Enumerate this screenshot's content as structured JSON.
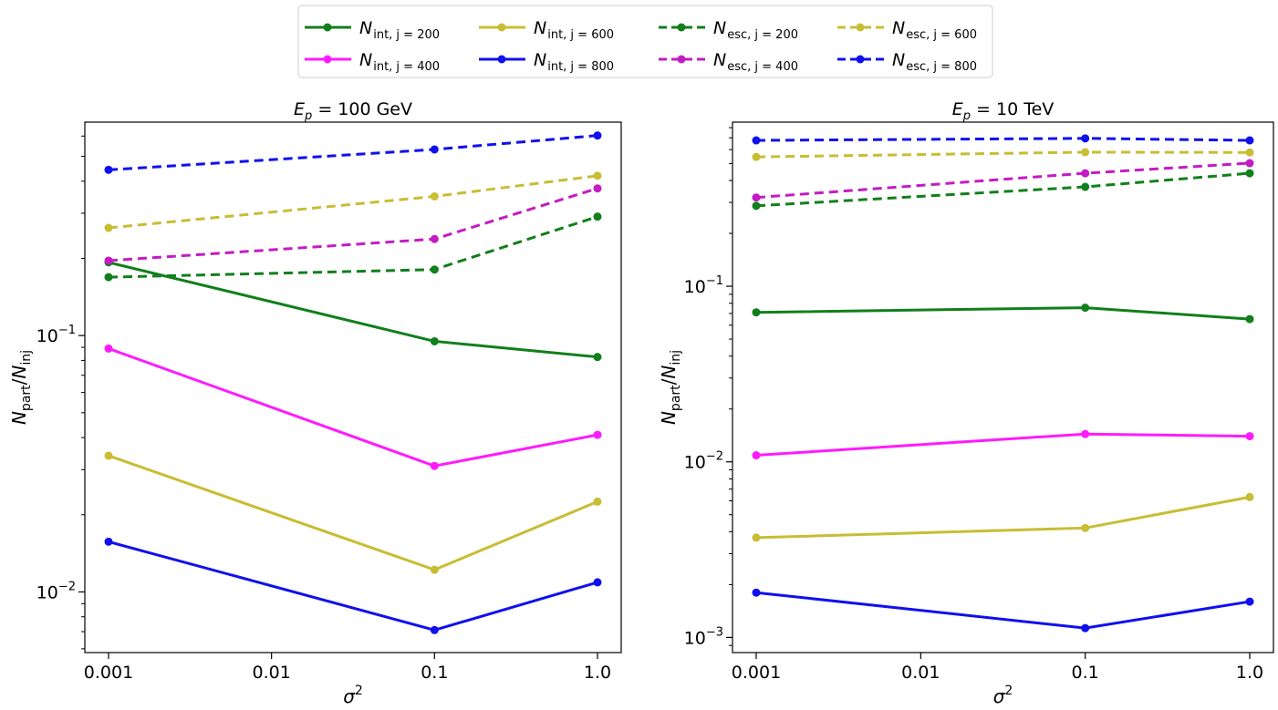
{
  "legend": {
    "location": "top-center",
    "entries": [
      {
        "base": "N",
        "sub": "int, j = 200",
        "color": "#117f1b",
        "dash": false
      },
      {
        "base": "N",
        "sub": "int, j = 400",
        "color": "#ff1aff",
        "dash": false
      },
      {
        "base": "N",
        "sub": "int, j = 600",
        "color": "#c8bd33",
        "dash": false
      },
      {
        "base": "N",
        "sub": "int, j = 800",
        "color": "#1010ee",
        "dash": false
      },
      {
        "base": "N",
        "sub": "esc, j = 200",
        "color": "#117f1b",
        "dash": true
      },
      {
        "base": "N",
        "sub": "esc, j = 400",
        "color": "#c41bc4",
        "dash": true
      },
      {
        "base": "N",
        "sub": "esc, j = 600",
        "color": "#c8bd33",
        "dash": true
      },
      {
        "base": "N",
        "sub": "esc, j = 800",
        "color": "#1010ee",
        "dash": true
      }
    ]
  },
  "chart_data": [
    {
      "type": "line",
      "title": {
        "base": "E",
        "sub": "p",
        "rest": " = 100 GeV"
      },
      "xlabel": {
        "base": "σ",
        "sup": "2"
      },
      "ylabel": {
        "n1": "N",
        "s1": "part",
        "n2": "N",
        "s2": "inj"
      },
      "xscale": "log",
      "yscale": "log",
      "x": [
        0.001,
        0.1,
        1.0
      ],
      "xticks": [
        "0.001",
        "0.01",
        "0.1",
        "1.0"
      ],
      "xtick_values": [
        0.001,
        0.01,
        0.1,
        1.0
      ],
      "yticks": [
        {
          "value": 0.1,
          "base": "10",
          "exp": "−1"
        },
        {
          "value": 0.01,
          "base": "10",
          "exp": "−2"
        }
      ],
      "xlim": [
        0.0006,
        1.6
      ],
      "ylim": [
        0.0058,
        0.68
      ],
      "series": [
        {
          "name": "N_int, j=200",
          "values": [
            0.193,
            0.095,
            0.0825
          ]
        },
        {
          "name": "N_int, j=400",
          "values": [
            0.089,
            0.031,
            0.041
          ]
        },
        {
          "name": "N_int, j=600",
          "values": [
            0.034,
            0.0122,
            0.0225
          ]
        },
        {
          "name": "N_int, j=800",
          "values": [
            0.0157,
            0.0071,
            0.0109
          ]
        },
        {
          "name": "N_esc, j=200",
          "values": [
            0.169,
            0.181,
            0.291
          ]
        },
        {
          "name": "N_esc, j=400",
          "values": [
            0.196,
            0.238,
            0.375
          ]
        },
        {
          "name": "N_esc, j=600",
          "values": [
            0.263,
            0.349,
            0.42
          ]
        },
        {
          "name": "N_esc, j=800",
          "values": [
            0.443,
            0.532,
            0.603
          ]
        }
      ]
    },
    {
      "type": "line",
      "title": {
        "base": "E",
        "sub": "p",
        "rest": " = 10 TeV"
      },
      "xlabel": {
        "base": "σ",
        "sup": "2"
      },
      "ylabel": {
        "n1": "N",
        "s1": "part",
        "n2": "N",
        "s2": "inj"
      },
      "xscale": "log",
      "yscale": "log",
      "x": [
        0.001,
        0.1,
        1.0
      ],
      "xticks": [
        "0.001",
        "0.01",
        "0.1",
        "1.0"
      ],
      "xtick_values": [
        0.001,
        0.01,
        0.1,
        1.0
      ],
      "yticks": [
        {
          "value": 0.1,
          "base": "10",
          "exp": "−1"
        },
        {
          "value": 0.01,
          "base": "10",
          "exp": "−2"
        },
        {
          "value": 0.001,
          "base": "10",
          "exp": "−3"
        }
      ],
      "xlim": [
        0.0006,
        1.6
      ],
      "ylim": [
        0.00082,
        0.86
      ],
      "series": [
        {
          "name": "N_int, j=200",
          "values": [
            0.071,
            0.0755,
            0.065
          ]
        },
        {
          "name": "N_int, j=400",
          "values": [
            0.0109,
            0.0144,
            0.014
          ]
        },
        {
          "name": "N_int, j=600",
          "values": [
            0.0037,
            0.0042,
            0.0063
          ]
        },
        {
          "name": "N_int, j=800",
          "values": [
            0.0018,
            0.00113,
            0.0016
          ]
        },
        {
          "name": "N_esc, j=200",
          "values": [
            0.287,
            0.368,
            0.44
          ]
        },
        {
          "name": "N_esc, j=400",
          "values": [
            0.32,
            0.44,
            0.502
          ]
        },
        {
          "name": "N_esc, j=600",
          "values": [
            0.545,
            0.58,
            0.578
          ]
        },
        {
          "name": "N_esc, j=800",
          "values": [
            0.677,
            0.695,
            0.677
          ]
        }
      ]
    }
  ]
}
